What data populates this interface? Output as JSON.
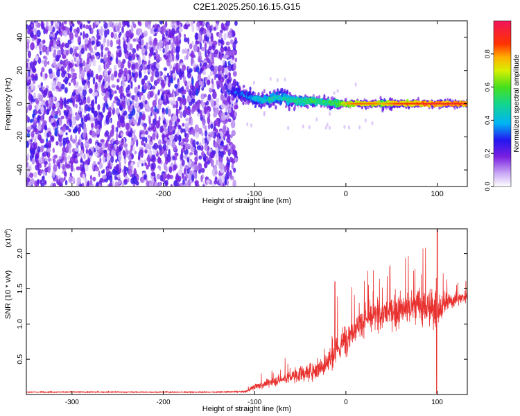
{
  "title": "C2E1.2025.250.16.15.G15",
  "chart_data": [
    {
      "type": "heatmap",
      "title": "C2E1.2025.250.16.15.G15",
      "xlabel": "Height of straight line (km)",
      "ylabel": "Frequency (Hz)",
      "xlim": [
        -350,
        133
      ],
      "ylim": [
        -50,
        50
      ],
      "x_ticks": [
        -300,
        -200,
        -100,
        0,
        100
      ],
      "x_tick_labels": [
        "-300",
        "-200",
        "-100",
        "0",
        "100"
      ],
      "y_ticks": [
        -40,
        -20,
        0,
        20,
        40
      ],
      "y_tick_labels": [
        "-40",
        "-20",
        "0",
        "20",
        "40"
      ],
      "colorbar": {
        "label": "Normalized spectral amplitude",
        "range": [
          0,
          1
        ],
        "ticks": [
          0.0,
          0.2,
          0.4,
          0.6,
          0.8
        ],
        "tick_labels": [
          "0.0",
          "0.2",
          "0.4",
          "0.6",
          "0.8"
        ]
      },
      "noise_region_x": [
        -350,
        -120
      ],
      "signal_track": {
        "x": [
          -125,
          -110,
          -100,
          -90,
          -80,
          -70,
          -60,
          -50,
          -40,
          -30,
          -20,
          -10,
          0,
          10,
          20,
          30,
          40,
          50,
          60,
          70,
          80,
          90,
          100,
          110,
          120,
          133
        ],
        "frequency": [
          8,
          5,
          3,
          2,
          3,
          4,
          2,
          1,
          2,
          1,
          1,
          0,
          0,
          0,
          0,
          0,
          0,
          0,
          0,
          0,
          0,
          0,
          0,
          0,
          0,
          0
        ],
        "spread": [
          6,
          5,
          5,
          5,
          5,
          6,
          5,
          4,
          4,
          3,
          3,
          3,
          2,
          2,
          2,
          2,
          3,
          3,
          2,
          2,
          2,
          2,
          2,
          2,
          2,
          2
        ],
        "amplitude": [
          0.3,
          0.35,
          0.4,
          0.45,
          0.5,
          0.45,
          0.5,
          0.55,
          0.55,
          0.55,
          0.55,
          0.6,
          0.7,
          0.75,
          0.75,
          0.75,
          0.7,
          0.75,
          0.8,
          0.8,
          0.8,
          0.85,
          0.85,
          0.85,
          0.85,
          0.85
        ]
      }
    },
    {
      "type": "line",
      "xlabel": "Height of straight line (km)",
      "ylabel": "SNR (10 * v/v)",
      "y_scale_label": "(x10",
      "y_scale_exp": "4",
      "xlim": [
        -350,
        133
      ],
      "ylim": [
        0,
        23500
      ],
      "x_ticks": [
        -300,
        -200,
        -100,
        0,
        100
      ],
      "x_tick_labels": [
        "-300",
        "-200",
        "-100",
        "0",
        "100"
      ],
      "y_ticks": [
        5000,
        10000,
        15000,
        20000
      ],
      "y_tick_labels": [
        "0.5",
        "1.0",
        "1.5",
        "2.0"
      ],
      "line_color": "#e8312f",
      "series": [
        {
          "name": "SNR",
          "x": [
            -350,
            -300,
            -250,
            -200,
            -150,
            -110,
            -100,
            -80,
            -60,
            -40,
            -30,
            -20,
            -10,
            0,
            10,
            20,
            40,
            60,
            80,
            100,
            110,
            120,
            133
          ],
          "mean": [
            350,
            350,
            350,
            340,
            340,
            400,
            1100,
            1800,
            2500,
            3200,
            3800,
            4500,
            6000,
            8000,
            9500,
            10500,
            11500,
            12000,
            12500,
            12000,
            13000,
            13500,
            14000
          ],
          "noise": [
            120,
            120,
            120,
            120,
            120,
            200,
            700,
            1000,
            1500,
            2000,
            2500,
            3000,
            3500,
            3500,
            3000,
            3000,
            3500,
            4000,
            4500,
            4500,
            2500,
            1500,
            1500
          ]
        }
      ]
    }
  ]
}
